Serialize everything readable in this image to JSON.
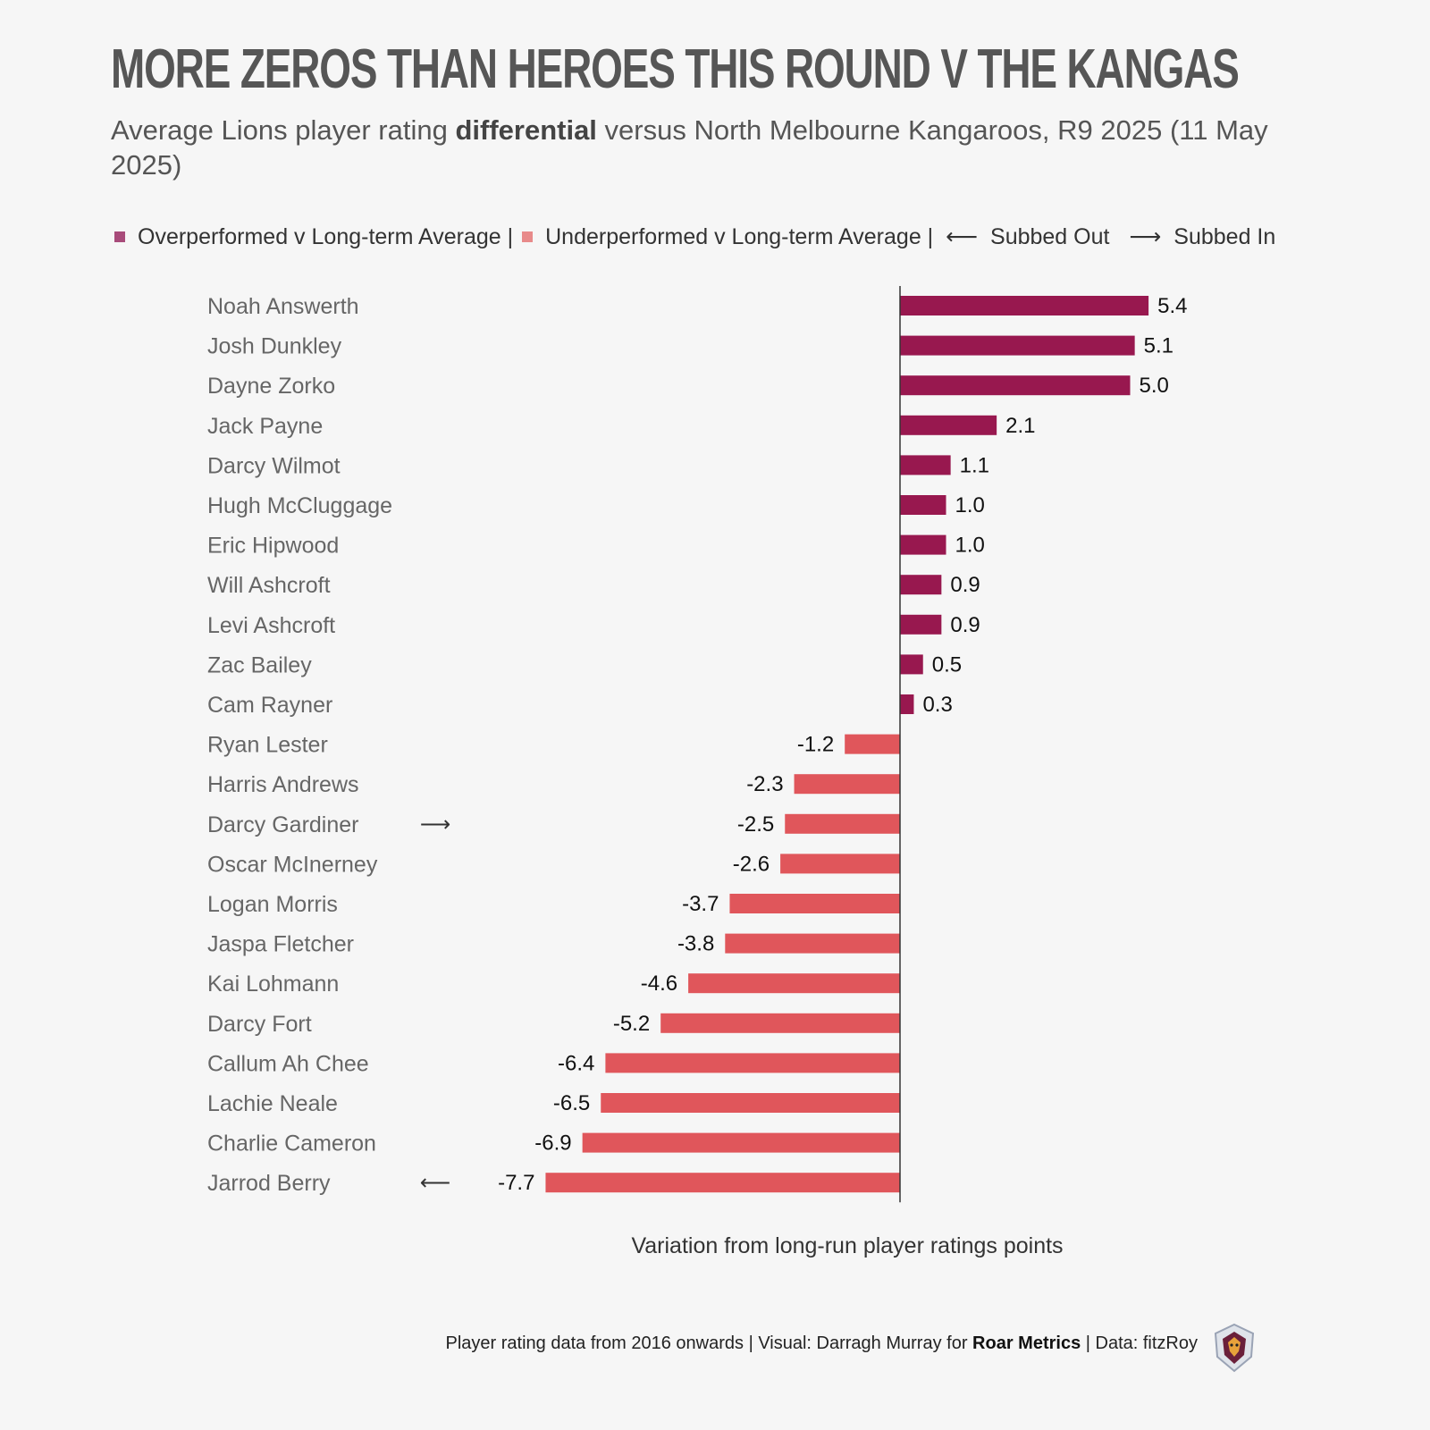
{
  "header": {
    "title": "MORE ZEROS THAN HEROES THIS ROUND V THE KANGAS",
    "subtitle_pre": "Average Lions player rating ",
    "subtitle_bold": "differential",
    "subtitle_post": " versus North Melbourne Kangaroos, R9 2025 (11 May 2025)"
  },
  "legend": {
    "over_label": "Overperformed v Long-term Average |",
    "under_label": "Underperformed v Long-term Average |",
    "subbed_out_label": "Subbed Out",
    "subbed_in_label": "Subbed In",
    "subbed_out_glyph": "⟵",
    "subbed_in_glyph": "⟶"
  },
  "colors": {
    "over": "#98184f",
    "under": "#e0565b",
    "legend_over": "#a84b7a",
    "legend_under": "#e88a8a",
    "axis": "#333333",
    "name_text": "#666666",
    "value_text": "#111111"
  },
  "chart_data": {
    "type": "bar",
    "orientation": "horizontal",
    "categories": [
      "Noah Answerth",
      "Josh Dunkley",
      "Dayne Zorko",
      "Jack Payne",
      "Darcy Wilmot",
      "Hugh McCluggage",
      "Eric Hipwood",
      "Will Ashcroft",
      "Levi Ashcroft",
      "Zac Bailey",
      "Cam Rayner",
      "Ryan Lester",
      "Harris Andrews",
      "Darcy Gardiner",
      "Oscar McInerney",
      "Logan Morris",
      "Jaspa Fletcher",
      "Kai Lohmann",
      "Darcy Fort",
      "Callum Ah Chee",
      "Lachie Neale",
      "Charlie Cameron",
      "Jarrod Berry"
    ],
    "values": [
      5.4,
      5.1,
      5.0,
      2.1,
      1.1,
      1.0,
      1.0,
      0.9,
      0.9,
      0.5,
      0.3,
      -1.2,
      -2.3,
      -2.5,
      -2.6,
      -3.7,
      -3.8,
      -4.6,
      -5.2,
      -6.4,
      -6.5,
      -6.9,
      -7.7
    ],
    "labels": [
      "5.4",
      "5.1",
      "5.0",
      "2.1",
      "1.1",
      "1.0",
      "1.0",
      "0.9",
      "0.9",
      "0.5",
      "0.3",
      "-1.2",
      "-2.3",
      "-2.5",
      "-2.6",
      "-3.7",
      "-3.8",
      "-4.6",
      "-5.2",
      "-6.4",
      "-6.5",
      "-6.9",
      "-7.7"
    ],
    "substitution": {
      "Darcy Gardiner": "in",
      "Jarrod Berry": "out"
    },
    "xlabel": "Variation from long-run player ratings points",
    "xlim": [
      -8,
      6
    ],
    "grid": false,
    "legend_position": "top"
  },
  "caption": {
    "pre": "Player rating data from 2016 onwards | Visual: Darragh Murray for ",
    "bold": "Roar Metrics",
    "post": " | Data: fitzRoy"
  }
}
